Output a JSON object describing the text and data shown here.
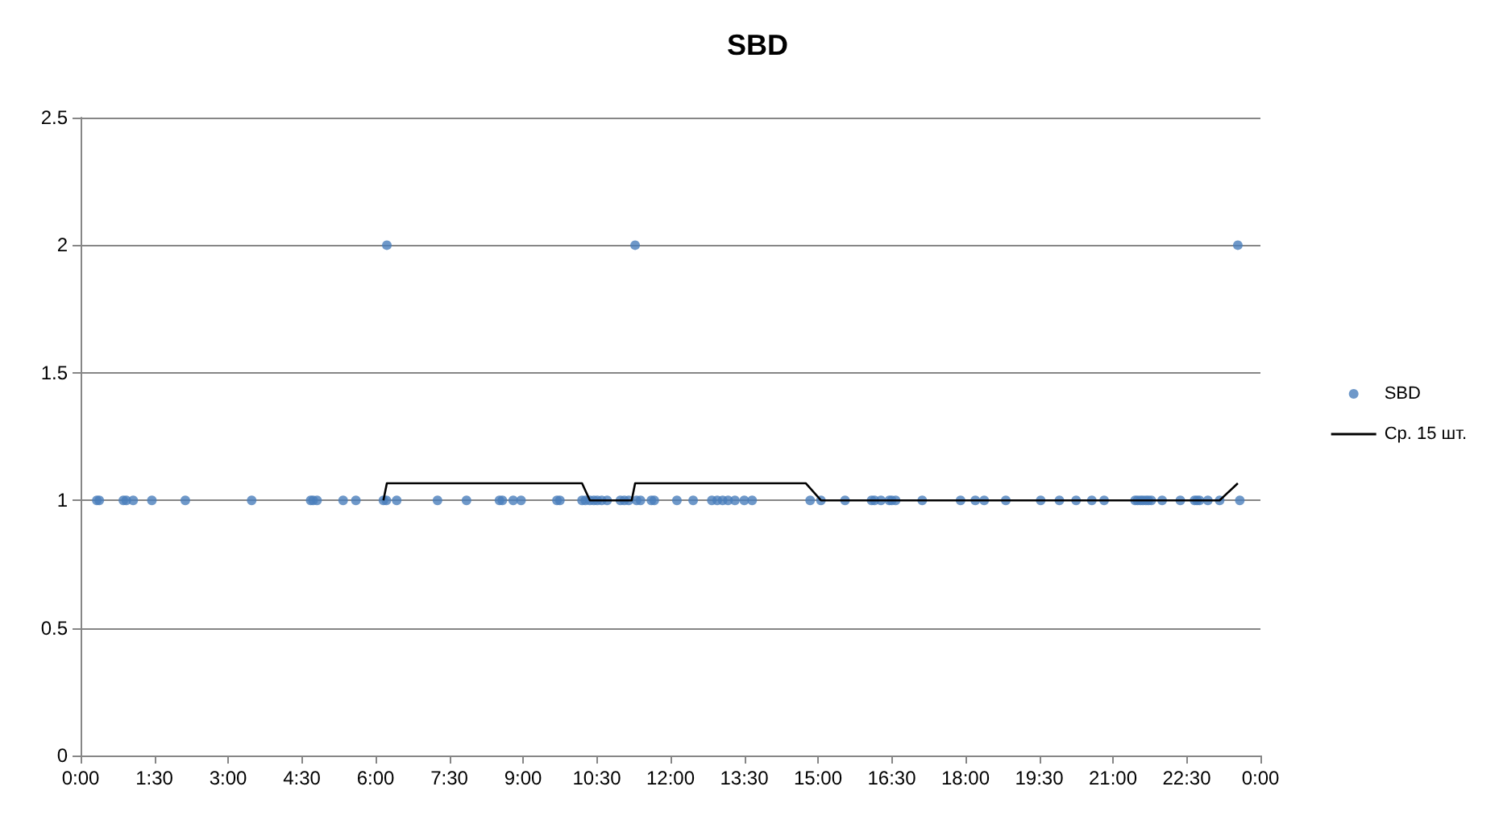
{
  "chart_data": {
    "type": "scatter",
    "title": "SBD",
    "xlim": [
      0,
      24
    ],
    "xticks": [
      {
        "value": 0,
        "label": "0:00"
      },
      {
        "value": 1.5,
        "label": "1:30"
      },
      {
        "value": 3,
        "label": "3:00"
      },
      {
        "value": 4.5,
        "label": "4:30"
      },
      {
        "value": 6,
        "label": "6:00"
      },
      {
        "value": 7.5,
        "label": "7:30"
      },
      {
        "value": 9,
        "label": "9:00"
      },
      {
        "value": 10.5,
        "label": "10:30"
      },
      {
        "value": 12,
        "label": "12:00"
      },
      {
        "value": 13.5,
        "label": "13:30"
      },
      {
        "value": 15,
        "label": "15:00"
      },
      {
        "value": 16.5,
        "label": "16:30"
      },
      {
        "value": 18,
        "label": "18:00"
      },
      {
        "value": 19.5,
        "label": "19:30"
      },
      {
        "value": 21,
        "label": "21:00"
      },
      {
        "value": 22.5,
        "label": "22:30"
      },
      {
        "value": 24,
        "label": "0:00"
      }
    ],
    "ylim": [
      0,
      2.5
    ],
    "yticks": [
      0,
      0.5,
      1,
      1.5,
      2,
      2.5
    ],
    "grid": "y",
    "legend": "right",
    "series": [
      {
        "name": "SBD",
        "marker": "circle",
        "color": "#4a7ebb",
        "x": [
          0.33,
          0.38,
          0.87,
          0.93,
          1.07,
          1.45,
          2.13,
          3.48,
          4.68,
          4.73,
          4.81,
          5.34,
          5.6,
          6.16,
          6.22,
          6.23,
          6.43,
          7.26,
          7.85,
          8.52,
          8.58,
          8.8,
          8.96,
          9.69,
          9.75,
          10.2,
          10.27,
          10.36,
          10.44,
          10.51,
          10.6,
          10.71,
          10.98,
          11.06,
          11.15,
          11.28,
          11.31,
          11.39,
          11.61,
          11.67,
          12.13,
          12.46,
          12.84,
          12.95,
          13.06,
          13.17,
          13.31,
          13.5,
          13.66,
          14.84,
          15.06,
          15.55,
          16.09,
          16.15,
          16.28,
          16.45,
          16.5,
          16.58,
          17.12,
          17.9,
          18.2,
          18.38,
          18.82,
          19.53,
          19.91,
          20.25,
          20.57,
          20.82,
          21.45,
          21.5,
          21.56,
          21.61,
          21.67,
          21.72,
          21.78,
          22.0,
          22.37,
          22.66,
          22.71,
          22.76,
          22.93,
          23.17,
          23.54,
          23.58
        ],
        "values": [
          1,
          1,
          1,
          1,
          1,
          1,
          1,
          1,
          1,
          1,
          1,
          1,
          1,
          1,
          1,
          2,
          1,
          1,
          1,
          1,
          1,
          1,
          1,
          1,
          1,
          1,
          1,
          1,
          1,
          1,
          1,
          1,
          1,
          1,
          1,
          2,
          1,
          1,
          1,
          1,
          1,
          1,
          1,
          1,
          1,
          1,
          1,
          1,
          1,
          1,
          1,
          1,
          1,
          1,
          1,
          1,
          1,
          1,
          1,
          1,
          1,
          1,
          1,
          1,
          1,
          1,
          1,
          1,
          1,
          1,
          1,
          1,
          1,
          1,
          1,
          1,
          1,
          1,
          1,
          1,
          1,
          1,
          2,
          1
        ]
      },
      {
        "name": "Ср. 15 шт.",
        "type": "line",
        "marker": "none",
        "line_style": "solid",
        "color": "#000000",
        "x": [
          6.16,
          6.23,
          10.2,
          10.36,
          11.21,
          11.28,
          14.75,
          15.06,
          23.17,
          23.54
        ],
        "values": [
          1,
          1.067,
          1.067,
          1,
          1,
          1.067,
          1.067,
          1,
          1,
          1.067
        ]
      }
    ]
  }
}
